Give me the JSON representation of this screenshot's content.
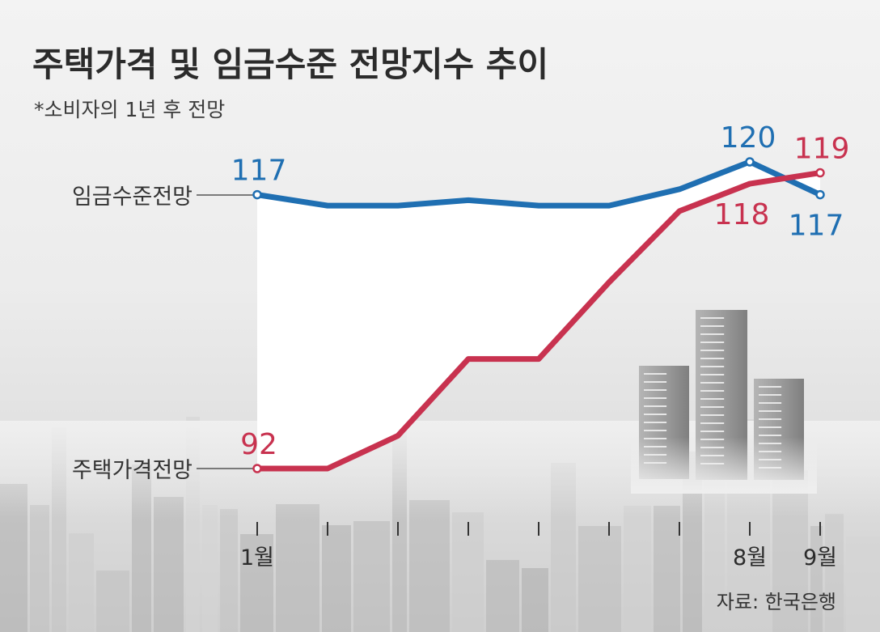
{
  "colors": {
    "wage": "#1f6fb2",
    "housing": "#c8324f",
    "text": "#2b2b2b",
    "area": "#ffffff"
  },
  "chart_data": {
    "type": "line",
    "title": "주택가격 및 임금수준 전망지수 추이",
    "subtitle": "*소비자의 1년 후 전망",
    "x": [
      1,
      2,
      3,
      4,
      5,
      6,
      7,
      8,
      9
    ],
    "x_tick_labels": [
      "1월",
      "",
      "",
      "",
      "",
      "",
      "",
      "8월",
      "9월"
    ],
    "ylim": [
      90,
      122
    ],
    "series": [
      {
        "name": "임금수준전망",
        "color": "#1f6fb2",
        "values": [
          117,
          116,
          116,
          116.5,
          116,
          116,
          117.5,
          120,
          117
        ],
        "point_labels": [
          {
            "index": 0,
            "text": "117"
          },
          {
            "index": 7,
            "text": "120"
          },
          {
            "index": 8,
            "text": "117"
          }
        ]
      },
      {
        "name": "주택가격전망",
        "color": "#c8324f",
        "values": [
          92,
          92,
          95,
          102,
          102,
          109,
          115.5,
          118,
          119
        ],
        "point_labels": [
          {
            "index": 0,
            "text": "92"
          },
          {
            "index": 7,
            "text": "118"
          },
          {
            "index": 8,
            "text": "119"
          }
        ]
      }
    ],
    "source": "자료: 한국은행"
  }
}
